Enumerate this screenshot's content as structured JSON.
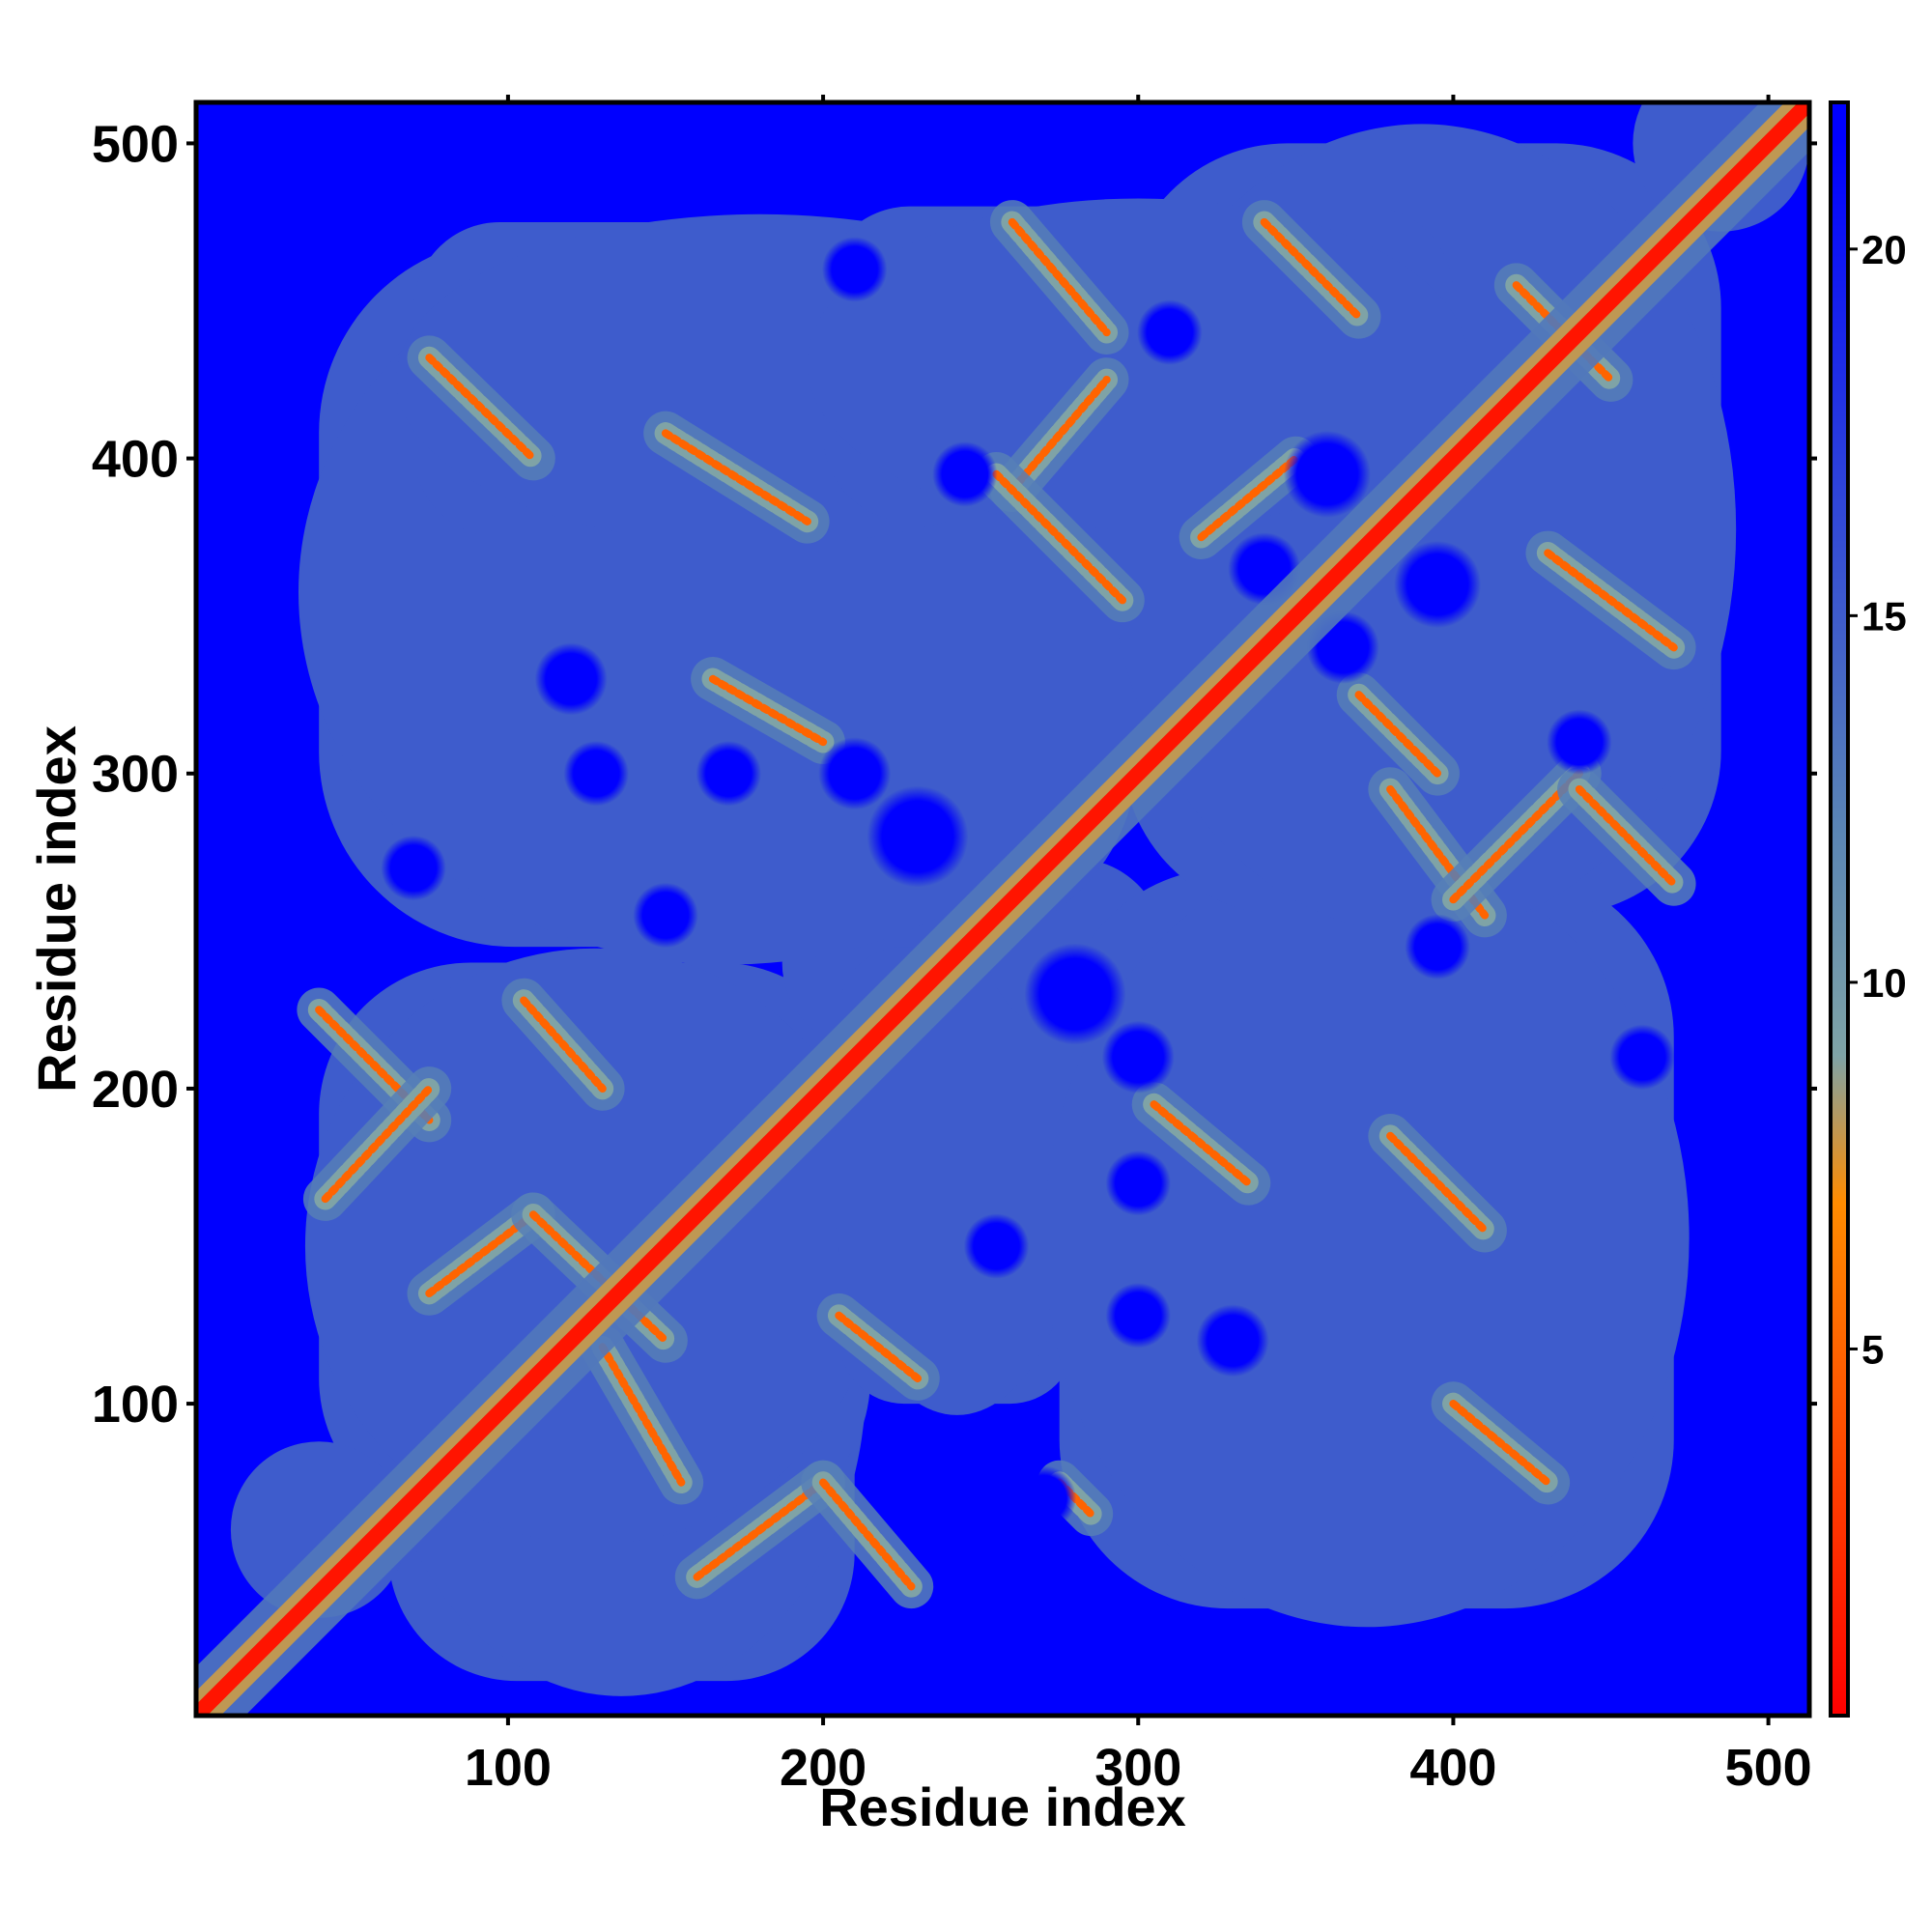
{
  "chart_data": {
    "type": "heatmap",
    "title": "",
    "xlabel": "Residue index",
    "ylabel": "Residue index",
    "xlim": [
      1,
      513
    ],
    "ylim": [
      1,
      513
    ],
    "x_ticks": [
      100,
      200,
      300,
      400,
      500
    ],
    "y_ticks": [
      100,
      200,
      300,
      400,
      500
    ],
    "colorbar": {
      "range": [
        0,
        22
      ],
      "ticks": [
        5,
        10,
        15,
        20
      ],
      "colors": [
        "#ff0000",
        "#ff8c00",
        "#7fa3a6",
        "#5b86b4",
        "#0000ff"
      ],
      "stops": [
        0,
        7,
        9,
        12,
        21.5
      ]
    },
    "background_value": 22,
    "diagonal_value": 1,
    "contact_regions": [
      {
        "x": [
          62,
          210
        ],
        "y": [
          12,
          205
        ]
      },
      {
        "x": [
          40,
          215
        ],
        "y": [
          60,
          240
        ]
      },
      {
        "x": [
          205,
          280
        ],
        "y": [
          100,
          245
        ]
      },
      {
        "x": [
          275,
          470
        ],
        "y": [
          35,
          270
        ]
      },
      {
        "x": [
          40,
          300
        ],
        "y": [
          245,
          470
        ]
      },
      {
        "x": [
          295,
          485
        ],
        "y": [
          255,
          500
        ]
      },
      {
        "x": [
          70,
          290
        ],
        "y": [
          375,
          475
        ]
      },
      {
        "x": [
          200,
          400
        ],
        "y": [
          380,
          480
        ]
      }
    ],
    "contact_bands": [
      {
        "x": [
          40,
          75
        ],
        "y": [
          225,
          190
        ]
      },
      {
        "x": [
          42,
          75
        ],
        "y": [
          165,
          200
        ]
      },
      {
        "x": [
          75,
          108
        ],
        "y": [
          135,
          160
        ]
      },
      {
        "x": [
          108,
          150
        ],
        "y": [
          160,
          120
        ]
      },
      {
        "x": [
          130,
          155
        ],
        "y": [
          118,
          75
        ]
      },
      {
        "x": [
          160,
          200
        ],
        "y": [
          45,
          75
        ]
      },
      {
        "x": [
          200,
          228
        ],
        "y": [
          75,
          42
        ]
      },
      {
        "x": [
          105,
          130
        ],
        "y": [
          228,
          200
        ]
      },
      {
        "x": [
          205,
          230
        ],
        "y": [
          128,
          108
        ]
      },
      {
        "x": [
          75,
          108
        ],
        "y": [
          432,
          400
        ]
      },
      {
        "x": [
          150,
          195
        ],
        "y": [
          408,
          380
        ]
      },
      {
        "x": [
          165,
          200
        ],
        "y": [
          330,
          310
        ]
      },
      {
        "x": [
          260,
          290
        ],
        "y": [
          475,
          440
        ]
      },
      {
        "x": [
          260,
          290
        ],
        "y": [
          390,
          425
        ]
      },
      {
        "x": [
          255,
          295
        ],
        "y": [
          395,
          355
        ]
      },
      {
        "x": [
          340,
          370
        ],
        "y": [
          475,
          445
        ]
      },
      {
        "x": [
          420,
          450
        ],
        "y": [
          455,
          425
        ]
      },
      {
        "x": [
          320,
          350
        ],
        "y": [
          375,
          400
        ]
      },
      {
        "x": [
          370,
          395
        ],
        "y": [
          325,
          300
        ]
      },
      {
        "x": [
          430,
          470
        ],
        "y": [
          370,
          340
        ]
      },
      {
        "x": [
          380,
          410
        ],
        "y": [
          295,
          255
        ]
      },
      {
        "x": [
          400,
          440
        ],
        "y": [
          260,
          300
        ]
      },
      {
        "x": [
          440,
          470
        ],
        "y": [
          295,
          265
        ]
      },
      {
        "x": [
          305,
          335
        ],
        "y": [
          195,
          170
        ]
      },
      {
        "x": [
          380,
          410
        ],
        "y": [
          185,
          155
        ]
      },
      {
        "x": [
          400,
          430
        ],
        "y": [
          100,
          75
        ]
      },
      {
        "x": [
          275,
          285
        ],
        "y": [
          75,
          65
        ]
      }
    ],
    "void_regions": [
      {
        "x": 340,
        "y": 365,
        "r": 10
      },
      {
        "x": 365,
        "y": 340,
        "r": 10
      },
      {
        "x": 395,
        "y": 360,
        "r": 12
      },
      {
        "x": 360,
        "y": 395,
        "r": 12
      },
      {
        "x": 280,
        "y": 230,
        "r": 14
      },
      {
        "x": 230,
        "y": 280,
        "r": 14
      },
      {
        "x": 310,
        "y": 440,
        "r": 9
      },
      {
        "x": 440,
        "y": 310,
        "r": 9
      },
      {
        "x": 245,
        "y": 395,
        "r": 9
      },
      {
        "x": 395,
        "y": 245,
        "r": 9
      },
      {
        "x": 210,
        "y": 300,
        "r": 10
      },
      {
        "x": 300,
        "y": 210,
        "r": 10
      },
      {
        "x": 128,
        "y": 300,
        "r": 9
      },
      {
        "x": 300,
        "y": 128,
        "r": 9
      },
      {
        "x": 170,
        "y": 300,
        "r": 9
      },
      {
        "x": 300,
        "y": 170,
        "r": 9
      },
      {
        "x": 330,
        "y": 120,
        "r": 10
      },
      {
        "x": 120,
        "y": 330,
        "r": 10
      },
      {
        "x": 270,
        "y": 70,
        "r": 9
      },
      {
        "x": 70,
        "y": 270,
        "r": 9
      },
      {
        "x": 150,
        "y": 255,
        "r": 9
      },
      {
        "x": 255,
        "y": 150,
        "r": 9
      },
      {
        "x": 460,
        "y": 210,
        "r": 9
      },
      {
        "x": 210,
        "y": 460,
        "r": 9
      }
    ]
  }
}
